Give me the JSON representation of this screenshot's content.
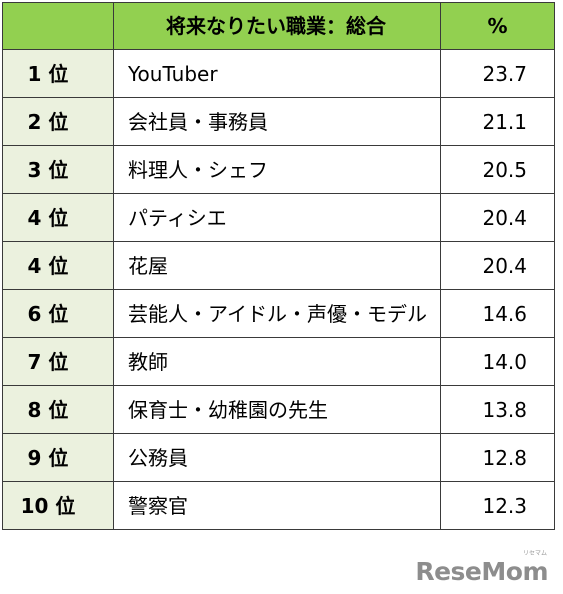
{
  "header": {
    "rank": "",
    "title": "将来なりたい職業：総合",
    "percent": "%"
  },
  "rows": [
    {
      "rank": "1 位",
      "job": "YouTuber",
      "pct": "23.7"
    },
    {
      "rank": "2 位",
      "job": "会社員・事務員",
      "pct": "21.1"
    },
    {
      "rank": "3 位",
      "job": "料理人・シェフ",
      "pct": "20.5"
    },
    {
      "rank": "4 位",
      "job": "パティシエ",
      "pct": "20.4"
    },
    {
      "rank": "4 位",
      "job": "花屋",
      "pct": "20.4"
    },
    {
      "rank": "6 位",
      "job": "芸能人・アイドル・声優・モデル",
      "pct": "14.6"
    },
    {
      "rank": "7 位",
      "job": "教師",
      "pct": "14.0"
    },
    {
      "rank": "8 位",
      "job": "保育士・幼稚園の先生",
      "pct": "13.8"
    },
    {
      "rank": "9 位",
      "job": "公務員",
      "pct": "12.8"
    },
    {
      "rank": "10 位",
      "job": "警察官",
      "pct": "12.3"
    }
  ],
  "watermark": {
    "brand": "ReseMom",
    "tag": "リセマム"
  },
  "colors": {
    "header_bg": "#92d050",
    "rank_bg": "#ebf1de",
    "border": "#3a3a3a"
  }
}
